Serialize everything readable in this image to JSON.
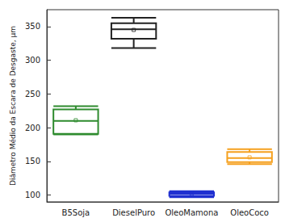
{
  "chart_data": {
    "type": "boxplot",
    "y_label": "Diâmetro Médio da Escara de Desgaste, µm",
    "categories": [
      "B5Soja",
      "DieselPuro",
      "OleoMamona",
      "OleoCoco"
    ],
    "values": [
      [
        190,
        191,
        210,
        227,
        232
      ],
      [
        318,
        332,
        346,
        355,
        363
      ],
      [
        97,
        99,
        102,
        104,
        106
      ],
      [
        146,
        149,
        155,
        164,
        168
      ]
    ],
    "means": [
      211,
      345,
      102,
      156
    ],
    "colors": [
      "#2e8b2e",
      "#222222",
      "#1f2fd0",
      "#f5a01e"
    ],
    "ylim": [
      90,
      375
    ],
    "yticks": [
      100,
      150,
      200,
      250,
      300,
      350
    ],
    "grid": false
  }
}
